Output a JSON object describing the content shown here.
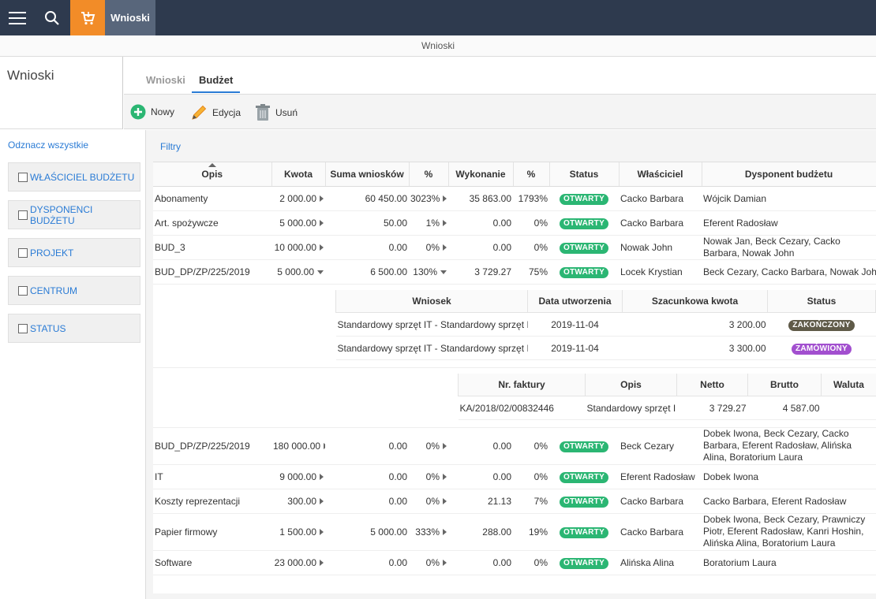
{
  "topbar": {
    "title": "Wnioski"
  },
  "page_subtitle": "Wnioski",
  "left_header": "Wnioski",
  "tabs": [
    "Wnioski",
    "Budżet"
  ],
  "toolbar": {
    "new": "Nowy",
    "edit": "Edycja",
    "delete": "Usuń"
  },
  "filters": {
    "uncheck_all": "Odznacz wszystkie",
    "items": [
      "WŁAŚCICIEL BUDŻETU",
      "DYSPONENCI BUDŻETU",
      "PROJEKT",
      "CENTRUM",
      "STATUS"
    ]
  },
  "filtry_label": "Filtry",
  "columns": [
    "Opis",
    "Kwota",
    "Suma wniosków",
    "%",
    "Wykonanie",
    "%",
    "Status",
    "Właściciel",
    "Dysponent budżetu"
  ],
  "rows": [
    {
      "opis": "Abonamenty",
      "kwota": "2 000.00",
      "suma": "60 450.00",
      "pct1": "3023%",
      "wyk": "35 863.00",
      "pct2": "1793%",
      "status": "OTWARTY",
      "wlasciciel": "Cacko Barbara",
      "dysponent": "Wójcik Damian"
    },
    {
      "opis": "Art. spożywcze",
      "kwota": "5 000.00",
      "suma": "50.00",
      "pct1": "1%",
      "wyk": "0.00",
      "pct2": "0%",
      "status": "OTWARTY",
      "wlasciciel": "Cacko Barbara",
      "dysponent": "Eferent Radosław"
    },
    {
      "opis": "BUD_3",
      "kwota": "10 000.00",
      "suma": "0.00",
      "pct1": "0%",
      "wyk": "0.00",
      "pct2": "0%",
      "status": "OTWARTY",
      "wlasciciel": "Nowak John",
      "dysponent": "Nowak Jan, Beck Cezary, Cacko Barbara, Nowak John"
    },
    {
      "opis": "BUD_DP/ZP/225/2019",
      "kwota": "5 000.00",
      "suma": "6 500.00",
      "pct1": "130%",
      "wyk": "3 729.27",
      "pct2": "75%",
      "status": "OTWARTY",
      "wlasciciel": "Locek Krystian",
      "dysponent": "Beck Cezary, Cacko Barbara, Nowak John"
    }
  ],
  "sub_requests": {
    "columns": [
      "Wniosek",
      "Data utworzenia",
      "Szacunkowa kwota",
      "Status"
    ],
    "rows": [
      {
        "wniosek": "Standardowy sprzęt IT - Standardowy sprzęt I",
        "data": "2019-11-04",
        "kwota": "3 200.00",
        "status": "ZAKOŃCZONY"
      },
      {
        "wniosek": "Standardowy sprzęt IT - Standardowy sprzęt I",
        "data": "2019-11-04",
        "kwota": "3 300.00",
        "status": "ZAMÓWIONY"
      }
    ]
  },
  "sub_invoices": {
    "columns": [
      "Nr. faktury",
      "Opis",
      "Netto",
      "Brutto",
      "Waluta"
    ],
    "rows": [
      {
        "nr": "KA/2018/02/00832446",
        "opis": "Standardowy sprzęt I",
        "netto": "3 729.27",
        "brutto": "4 587.00",
        "waluta": ""
      }
    ]
  },
  "rows2": [
    {
      "opis": "BUD_DP/ZP/225/2019",
      "kwota": "180 000.00",
      "suma": "0.00",
      "pct1": "0%",
      "wyk": "0.00",
      "pct2": "0%",
      "status": "OTWARTY",
      "wlasciciel": "Beck Cezary",
      "dysponent": "Dobek Iwona, Beck Cezary, Cacko Barbara, Eferent Radosław, Alińska Alina, Boratorium Laura"
    },
    {
      "opis": "IT",
      "kwota": "9 000.00",
      "suma": "0.00",
      "pct1": "0%",
      "wyk": "0.00",
      "pct2": "0%",
      "status": "OTWARTY",
      "wlasciciel": "Eferent Radosław",
      "dysponent": "Dobek Iwona"
    },
    {
      "opis": "Koszty reprezentacji",
      "kwota": "300.00",
      "suma": "0.00",
      "pct1": "0%",
      "wyk": "21.13",
      "pct2": "7%",
      "status": "OTWARTY",
      "wlasciciel": "Cacko Barbara",
      "dysponent": "Cacko Barbara, Eferent Radosław"
    },
    {
      "opis": "Papier firmowy",
      "kwota": "1 500.00",
      "suma": "5 000.00",
      "pct1": "333%",
      "wyk": "288.00",
      "pct2": "19%",
      "status": "OTWARTY",
      "wlasciciel": "Cacko Barbara",
      "dysponent": "Dobek Iwona, Beck Cezary, Prawniczy Piotr, Eferent Radosław, Kanri Hoshin, Alińska Alina, Boratorium Laura"
    },
    {
      "opis": "Software",
      "kwota": "23 000.00",
      "suma": "0.00",
      "pct1": "0%",
      "wyk": "0.00",
      "pct2": "0%",
      "status": "OTWARTY",
      "wlasciciel": "Alińska Alina",
      "dysponent": "Boratorium Laura"
    }
  ]
}
